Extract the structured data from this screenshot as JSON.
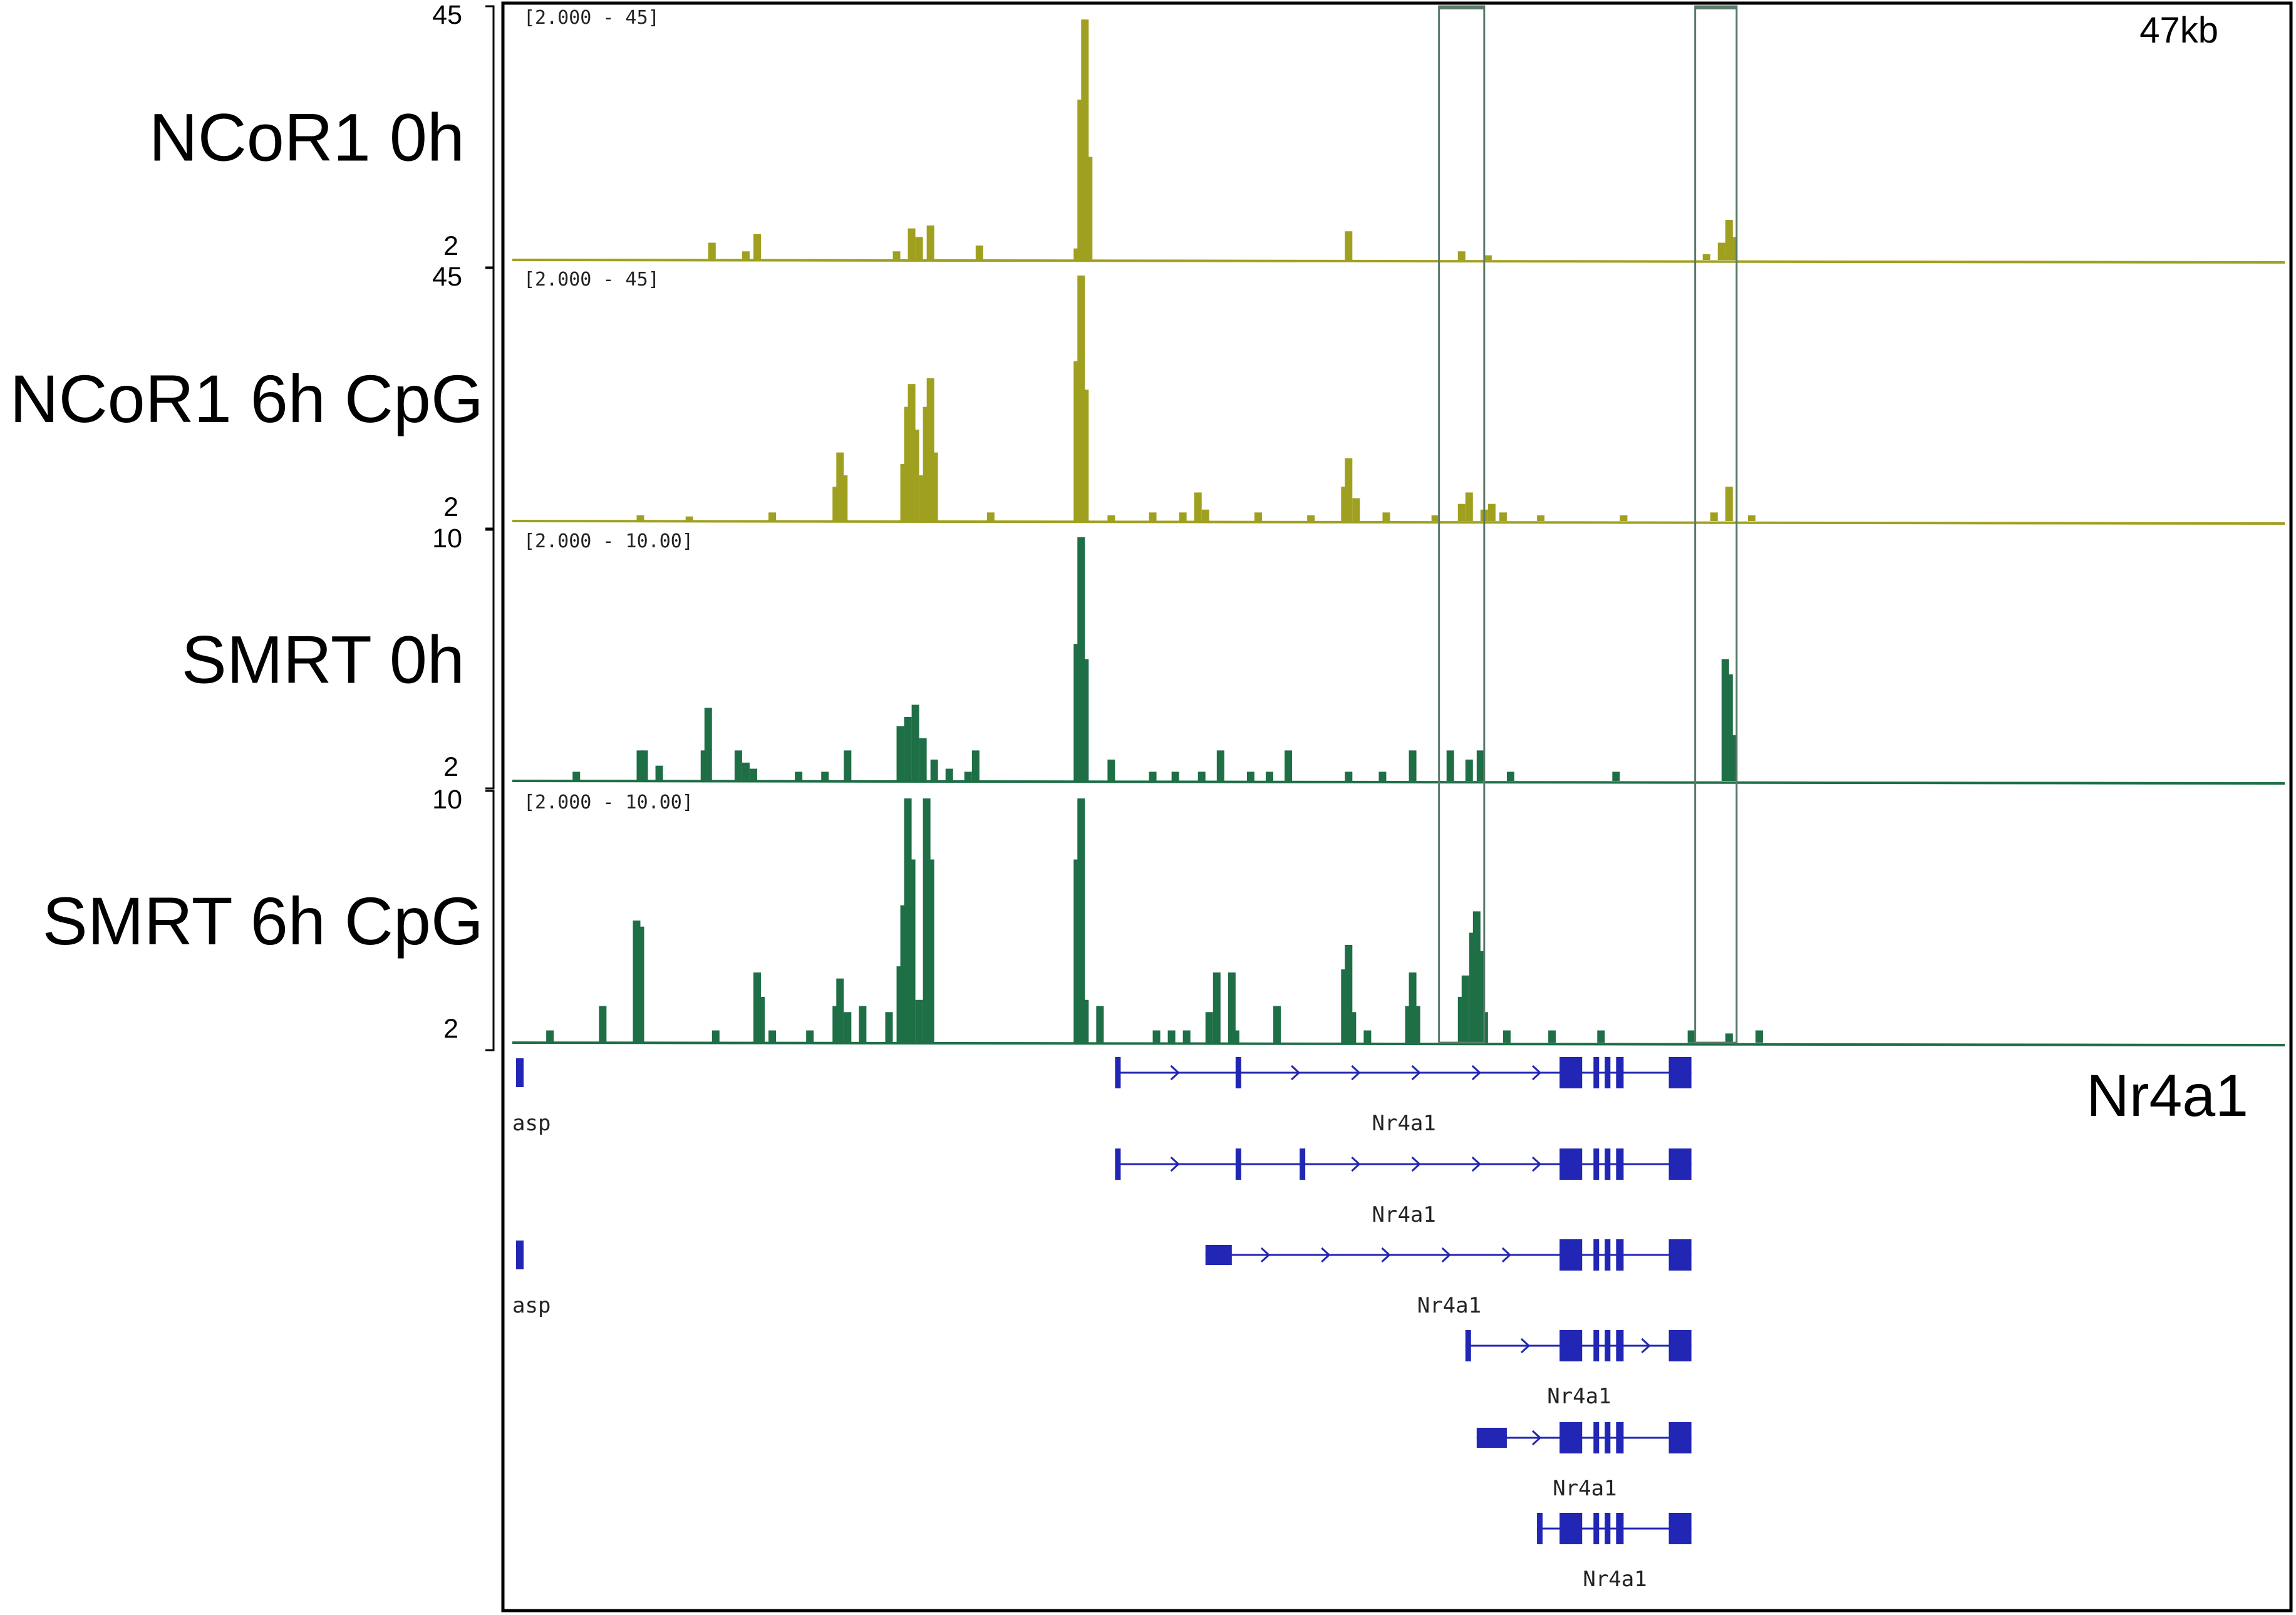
{
  "figure": {
    "span_label": "47kb",
    "gene_name": "Nr4a1",
    "colors": {
      "ncor": "#a0a020",
      "smrt": "#1e6e46",
      "gene": "#2226b4",
      "highlight": "#5a7a6a",
      "frame": "#000000"
    }
  },
  "chart_data": {
    "type": "area",
    "title": "",
    "xlabel": "",
    "ylabel": "",
    "x_unit": "genomic position (kb)",
    "xlim": [
      0,
      47
    ],
    "tracks": [
      {
        "name": "NCoR1 0h",
        "range_label": "[2.000 - 45]",
        "ymax_label": "45",
        "ymin_label": "2",
        "ylim": [
          2,
          45
        ],
        "color": "#a0a020",
        "peaks": [
          {
            "x": 5.3,
            "y": 5
          },
          {
            "x": 6.2,
            "y": 3.5
          },
          {
            "x": 6.5,
            "y": 6.5
          },
          {
            "x": 10.2,
            "y": 3.5
          },
          {
            "x": 10.6,
            "y": 7.5
          },
          {
            "x": 10.8,
            "y": 6
          },
          {
            "x": 11.1,
            "y": 8
          },
          {
            "x": 12.4,
            "y": 4.5
          },
          {
            "x": 15.0,
            "y": 4
          },
          {
            "x": 15.1,
            "y": 30
          },
          {
            "x": 15.2,
            "y": 44
          },
          {
            "x": 15.3,
            "y": 20
          },
          {
            "x": 22.2,
            "y": 7
          },
          {
            "x": 25.2,
            "y": 3.5
          },
          {
            "x": 25.9,
            "y": 2.8
          },
          {
            "x": 31.7,
            "y": 3
          },
          {
            "x": 32.1,
            "y": 5
          },
          {
            "x": 32.3,
            "y": 9
          },
          {
            "x": 32.4,
            "y": 6
          }
        ]
      },
      {
        "name": "NCoR1 6h CpG",
        "range_label": "[2.000 - 45]",
        "ymax_label": "45",
        "ymin_label": "2",
        "ylim": [
          2,
          45
        ],
        "color": "#a0a020",
        "peaks": [
          {
            "x": 3.4,
            "y": 3
          },
          {
            "x": 4.7,
            "y": 2.8
          },
          {
            "x": 6.9,
            "y": 3.5
          },
          {
            "x": 8.6,
            "y": 8
          },
          {
            "x": 8.7,
            "y": 14
          },
          {
            "x": 8.8,
            "y": 10
          },
          {
            "x": 10.4,
            "y": 12
          },
          {
            "x": 10.5,
            "y": 22
          },
          {
            "x": 10.6,
            "y": 26
          },
          {
            "x": 10.7,
            "y": 18
          },
          {
            "x": 10.9,
            "y": 10
          },
          {
            "x": 11.0,
            "y": 22
          },
          {
            "x": 11.1,
            "y": 27
          },
          {
            "x": 11.2,
            "y": 14
          },
          {
            "x": 12.7,
            "y": 3.5
          },
          {
            "x": 15.0,
            "y": 30
          },
          {
            "x": 15.1,
            "y": 45
          },
          {
            "x": 15.2,
            "y": 25
          },
          {
            "x": 15.9,
            "y": 3
          },
          {
            "x": 17.0,
            "y": 3.5
          },
          {
            "x": 17.8,
            "y": 3.5
          },
          {
            "x": 18.2,
            "y": 7
          },
          {
            "x": 18.4,
            "y": 4
          },
          {
            "x": 19.8,
            "y": 3.5
          },
          {
            "x": 21.2,
            "y": 3
          },
          {
            "x": 22.1,
            "y": 8
          },
          {
            "x": 22.2,
            "y": 13
          },
          {
            "x": 22.4,
            "y": 6
          },
          {
            "x": 23.2,
            "y": 3.5
          },
          {
            "x": 24.5,
            "y": 3
          },
          {
            "x": 25.2,
            "y": 5
          },
          {
            "x": 25.4,
            "y": 7
          },
          {
            "x": 25.8,
            "y": 4
          },
          {
            "x": 26.0,
            "y": 5
          },
          {
            "x": 26.3,
            "y": 3.5
          },
          {
            "x": 27.3,
            "y": 3
          },
          {
            "x": 29.5,
            "y": 3
          },
          {
            "x": 31.9,
            "y": 3.5
          },
          {
            "x": 32.3,
            "y": 8
          },
          {
            "x": 32.9,
            "y": 3
          }
        ]
      },
      {
        "name": "SMRT 0h",
        "range_label": "[2.000 - 10.00]",
        "ymax_label": "10",
        "ymin_label": "2",
        "ylim": [
          2,
          10
        ],
        "color": "#1e6e46",
        "peaks": [
          {
            "x": 1.7,
            "y": 2.3
          },
          {
            "x": 3.4,
            "y": 3
          },
          {
            "x": 3.5,
            "y": 3
          },
          {
            "x": 3.9,
            "y": 2.5
          },
          {
            "x": 5.1,
            "y": 3
          },
          {
            "x": 5.2,
            "y": 4.4
          },
          {
            "x": 6.0,
            "y": 3
          },
          {
            "x": 6.2,
            "y": 2.6
          },
          {
            "x": 6.4,
            "y": 2.4
          },
          {
            "x": 7.6,
            "y": 2.3
          },
          {
            "x": 8.3,
            "y": 2.3
          },
          {
            "x": 8.9,
            "y": 3
          },
          {
            "x": 10.3,
            "y": 3.8
          },
          {
            "x": 10.5,
            "y": 4.1
          },
          {
            "x": 10.7,
            "y": 4.5
          },
          {
            "x": 10.9,
            "y": 3.4
          },
          {
            "x": 11.2,
            "y": 2.7
          },
          {
            "x": 11.6,
            "y": 2.4
          },
          {
            "x": 12.1,
            "y": 2.3
          },
          {
            "x": 12.3,
            "y": 3
          },
          {
            "x": 15.0,
            "y": 6.5
          },
          {
            "x": 15.1,
            "y": 10
          },
          {
            "x": 15.2,
            "y": 6
          },
          {
            "x": 15.9,
            "y": 2.7
          },
          {
            "x": 17.0,
            "y": 2.3
          },
          {
            "x": 17.6,
            "y": 2.3
          },
          {
            "x": 18.3,
            "y": 2.3
          },
          {
            "x": 18.8,
            "y": 3
          },
          {
            "x": 19.6,
            "y": 2.3
          },
          {
            "x": 20.1,
            "y": 2.3
          },
          {
            "x": 20.6,
            "y": 3
          },
          {
            "x": 22.2,
            "y": 2.3
          },
          {
            "x": 23.1,
            "y": 2.3
          },
          {
            "x": 23.9,
            "y": 3
          },
          {
            "x": 24.9,
            "y": 3
          },
          {
            "x": 25.4,
            "y": 2.7
          },
          {
            "x": 25.7,
            "y": 3
          },
          {
            "x": 26.5,
            "y": 2.3
          },
          {
            "x": 29.3,
            "y": 2.3
          },
          {
            "x": 32.2,
            "y": 6
          },
          {
            "x": 32.3,
            "y": 5.5
          },
          {
            "x": 32.4,
            "y": 3.5
          }
        ]
      },
      {
        "name": "SMRT 6h CpG",
        "range_label": "[2.000 - 10.00]",
        "ymax_label": "10",
        "ymin_label": "2",
        "ylim": [
          2,
          10
        ],
        "color": "#1e6e46",
        "peaks": [
          {
            "x": 1.0,
            "y": 2.4
          },
          {
            "x": 2.4,
            "y": 3.2
          },
          {
            "x": 3.3,
            "y": 6
          },
          {
            "x": 3.4,
            "y": 5.8
          },
          {
            "x": 5.4,
            "y": 2.4
          },
          {
            "x": 6.5,
            "y": 4.3
          },
          {
            "x": 6.6,
            "y": 3.5
          },
          {
            "x": 6.9,
            "y": 2.4
          },
          {
            "x": 7.9,
            "y": 2.4
          },
          {
            "x": 8.6,
            "y": 3.2
          },
          {
            "x": 8.7,
            "y": 4.1
          },
          {
            "x": 8.9,
            "y": 3
          },
          {
            "x": 9.3,
            "y": 3.2
          },
          {
            "x": 10.0,
            "y": 3
          },
          {
            "x": 10.3,
            "y": 4.5
          },
          {
            "x": 10.4,
            "y": 6.5
          },
          {
            "x": 10.5,
            "y": 10
          },
          {
            "x": 10.6,
            "y": 8
          },
          {
            "x": 10.8,
            "y": 3.4
          },
          {
            "x": 11.0,
            "y": 10
          },
          {
            "x": 11.1,
            "y": 8
          },
          {
            "x": 15.0,
            "y": 8
          },
          {
            "x": 15.1,
            "y": 10
          },
          {
            "x": 15.2,
            "y": 3.4
          },
          {
            "x": 15.6,
            "y": 3.2
          },
          {
            "x": 17.1,
            "y": 2.4
          },
          {
            "x": 17.5,
            "y": 2.4
          },
          {
            "x": 17.9,
            "y": 2.4
          },
          {
            "x": 18.5,
            "y": 3
          },
          {
            "x": 18.7,
            "y": 4.3
          },
          {
            "x": 19.1,
            "y": 4.3
          },
          {
            "x": 19.2,
            "y": 2.4
          },
          {
            "x": 20.3,
            "y": 3.2
          },
          {
            "x": 22.1,
            "y": 4.4
          },
          {
            "x": 22.2,
            "y": 5.2
          },
          {
            "x": 22.3,
            "y": 3
          },
          {
            "x": 22.7,
            "y": 2.4
          },
          {
            "x": 23.8,
            "y": 3.2
          },
          {
            "x": 23.9,
            "y": 4.3
          },
          {
            "x": 24.0,
            "y": 3.2
          },
          {
            "x": 25.2,
            "y": 3.5
          },
          {
            "x": 25.3,
            "y": 4.2
          },
          {
            "x": 25.5,
            "y": 5.6
          },
          {
            "x": 25.6,
            "y": 6.3
          },
          {
            "x": 25.7,
            "y": 5
          },
          {
            "x": 25.8,
            "y": 3
          },
          {
            "x": 26.4,
            "y": 2.4
          },
          {
            "x": 27.6,
            "y": 2.4
          },
          {
            "x": 28.9,
            "y": 2.4
          },
          {
            "x": 31.3,
            "y": 2.4
          },
          {
            "x": 32.3,
            "y": 2.3
          },
          {
            "x": 33.1,
            "y": 2.4
          }
        ]
      }
    ],
    "highlights": [
      {
        "x_start": 24.6,
        "x_end": 25.8
      },
      {
        "x_start": 31.4,
        "x_end": 32.5
      }
    ],
    "transcripts": [
      {
        "label": "asp",
        "start": 0.1,
        "end": 0.3,
        "exons": [
          [
            0.1,
            0.3
          ]
        ],
        "direction": "+"
      },
      {
        "label": "Nr4a1",
        "start": 16.0,
        "end": 31.3,
        "exons": [
          [
            16.0,
            16.1
          ],
          [
            19.2,
            19.3
          ],
          [
            27.8,
            28.4
          ],
          [
            28.7,
            28.8
          ],
          [
            29.0,
            29.1
          ],
          [
            29.3,
            29.5
          ],
          [
            30.7,
            31.3
          ]
        ],
        "direction": "+"
      },
      {
        "label": "Nr4a1",
        "start": 16.0,
        "end": 31.3,
        "exons": [
          [
            16.0,
            16.1
          ],
          [
            19.2,
            19.3
          ],
          [
            20.9,
            21.0
          ],
          [
            27.8,
            28.4
          ],
          [
            28.7,
            28.8
          ],
          [
            29.0,
            29.1
          ],
          [
            29.3,
            29.5
          ],
          [
            30.7,
            31.3
          ]
        ],
        "direction": "+"
      },
      {
        "label": "asp",
        "start": 0.1,
        "end": 0.3,
        "exons": [
          [
            0.1,
            0.3
          ]
        ],
        "direction": "+"
      },
      {
        "label": "Nr4a1",
        "start": 18.4,
        "end": 31.3,
        "exons": [
          [
            18.4,
            19.1
          ],
          [
            27.8,
            28.4
          ],
          [
            28.7,
            28.8
          ],
          [
            29.0,
            29.1
          ],
          [
            29.3,
            29.5
          ],
          [
            30.7,
            31.3
          ]
        ],
        "direction": "+"
      },
      {
        "label": "Nr4a1",
        "start": 25.3,
        "end": 31.3,
        "exons": [
          [
            25.3,
            25.4
          ],
          [
            27.8,
            28.4
          ],
          [
            28.7,
            28.8
          ],
          [
            29.0,
            29.1
          ],
          [
            29.3,
            29.5
          ],
          [
            30.7,
            31.3
          ]
        ],
        "direction": "+"
      },
      {
        "label": "Nr4a1",
        "start": 25.6,
        "end": 31.3,
        "exons": [
          [
            25.6,
            26.4
          ],
          [
            27.8,
            28.4
          ],
          [
            28.7,
            28.8
          ],
          [
            29.0,
            29.1
          ],
          [
            29.3,
            29.5
          ],
          [
            30.7,
            31.3
          ]
        ],
        "direction": "+"
      },
      {
        "label": "Nr4a1",
        "start": 27.2,
        "end": 31.3,
        "exons": [
          [
            27.2,
            27.3
          ],
          [
            27.8,
            28.4
          ],
          [
            28.7,
            28.8
          ],
          [
            29.0,
            29.1
          ],
          [
            29.3,
            29.5
          ],
          [
            30.7,
            31.3
          ]
        ],
        "direction": "+"
      }
    ]
  }
}
